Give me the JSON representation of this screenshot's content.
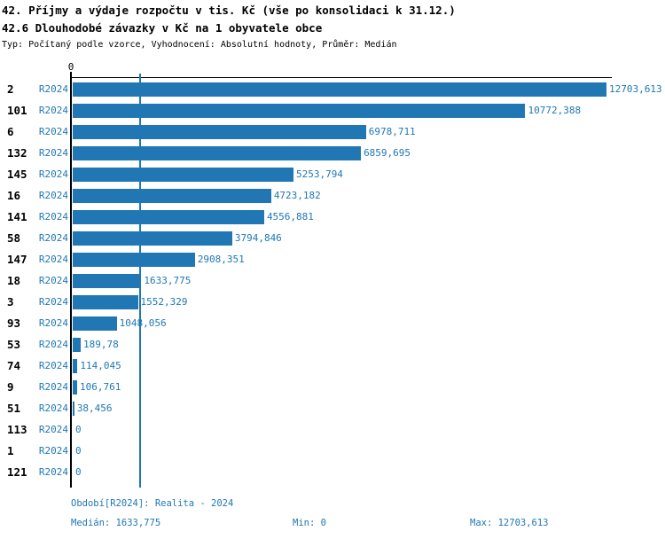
{
  "header": {
    "title": "42. Příjmy a výdaje rozpočtu v tis. Kč (vše po konsolidaci k 31.12.)",
    "subtitle": "42.6 Dlouhodobé závazky v Kč na 1 obyvatele obce",
    "meta": "Typ: Počítaný podle vzorce, Vyhodnocení: Absolutní hodnoty, Průměr: Medián"
  },
  "chart_data": {
    "type": "bar",
    "orientation": "horizontal",
    "title": "42. Příjmy a výdaje rozpočtu v tis. Kč (vše po konsolidaci k 31.12.)",
    "subtitle": "42.6 Dlouhodobé závazky v Kč na 1 obyvatele obce",
    "x_axis": {
      "tick_labels": [
        "0"
      ],
      "range": [
        0,
        12703.613
      ],
      "grid": false
    },
    "median_line_value": 1633.775,
    "series_label": "R2024",
    "rows": [
      {
        "category": "2",
        "period": "R2024",
        "value": 12703.613,
        "label": "12703,613"
      },
      {
        "category": "101",
        "period": "R2024",
        "value": 10772.388,
        "label": "10772,388"
      },
      {
        "category": "6",
        "period": "R2024",
        "value": 6978.711,
        "label": "6978,711"
      },
      {
        "category": "132",
        "period": "R2024",
        "value": 6859.695,
        "label": "6859,695"
      },
      {
        "category": "145",
        "period": "R2024",
        "value": 5253.794,
        "label": "5253,794"
      },
      {
        "category": "16",
        "period": "R2024",
        "value": 4723.182,
        "label": "4723,182"
      },
      {
        "category": "141",
        "period": "R2024",
        "value": 4556.881,
        "label": "4556,881"
      },
      {
        "category": "58",
        "period": "R2024",
        "value": 3794.846,
        "label": "3794,846"
      },
      {
        "category": "147",
        "period": "R2024",
        "value": 2908.351,
        "label": "2908,351"
      },
      {
        "category": "18",
        "period": "R2024",
        "value": 1633.775,
        "label": "1633,775"
      },
      {
        "category": "3",
        "period": "R2024",
        "value": 1552.329,
        "label": "1552,329"
      },
      {
        "category": "93",
        "period": "R2024",
        "value": 1048.056,
        "label": "1048,056"
      },
      {
        "category": "53",
        "period": "R2024",
        "value": 189.78,
        "label": "189,78"
      },
      {
        "category": "74",
        "period": "R2024",
        "value": 114.045,
        "label": "114,045"
      },
      {
        "category": "9",
        "period": "R2024",
        "value": 106.761,
        "label": "106,761"
      },
      {
        "category": "51",
        "period": "R2024",
        "value": 38.456,
        "label": "38,456"
      },
      {
        "category": "113",
        "period": "R2024",
        "value": 0,
        "label": "0"
      },
      {
        "category": "1",
        "period": "R2024",
        "value": 0,
        "label": "0"
      },
      {
        "category": "121",
        "period": "R2024",
        "value": 0,
        "label": "0"
      }
    ],
    "colors": {
      "bar": "#2077b4",
      "label_text": "#1f77b4",
      "axis": "#000000",
      "median_line": "#2077b4"
    },
    "legend_position": "none"
  },
  "footer": {
    "period": "Období[R2024]: Realita - 2024",
    "median": "Medián: 1633,775",
    "min": "Min: 0",
    "max": "Max: 12703,613"
  }
}
